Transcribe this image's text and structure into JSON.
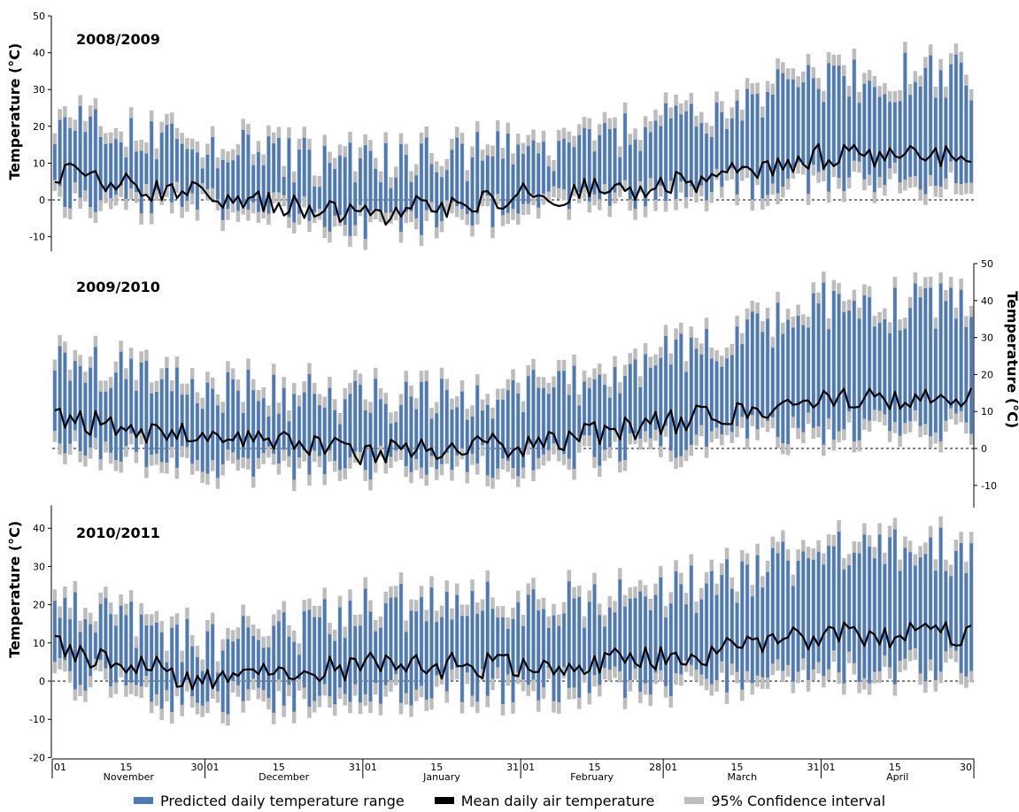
{
  "chart_data": [
    {
      "type": "bar",
      "title": "2008/2009",
      "ylabel": "Temperature (°C)",
      "y_axis_side": "left",
      "ylim": [
        -14,
        50
      ],
      "yticks": [
        -10,
        0,
        10,
        20,
        30,
        40,
        50
      ],
      "reference_line": 0,
      "x": {
        "start": "November 1",
        "end": "April 30"
      },
      "series": [
        {
          "name": "Predicted daily temperature range",
          "kind": "range",
          "note": "approx. monthly mean range",
          "monthly_min": [
            2,
            0,
            -6,
            -2,
            3,
            6
          ],
          "monthly_max": [
            20,
            13,
            9,
            13,
            20,
            33
          ]
        },
        {
          "name": "Mean daily air temperature",
          "kind": "line",
          "monthly_mean": [
            7,
            1,
            -4,
            1,
            4,
            12
          ]
        },
        {
          "name": "95% Confidence interval",
          "kind": "band",
          "approx_width": 3
        }
      ]
    },
    {
      "type": "bar",
      "title": "2009/2010",
      "ylabel": "Temperature (°C)",
      "y_axis_side": "right",
      "ylim": [
        -16,
        50
      ],
      "yticks": [
        -10,
        0,
        10,
        20,
        30,
        40,
        50
      ],
      "reference_line": 0,
      "x": {
        "start": "November 1",
        "end": "April 30"
      },
      "series": [
        {
          "name": "Predicted daily temperature range",
          "kind": "range",
          "monthly_min": [
            2,
            -3,
            -4,
            -3,
            2,
            6
          ],
          "monthly_max": [
            24,
            16,
            12,
            14,
            24,
            38
          ]
        },
        {
          "name": "Mean daily air temperature",
          "kind": "line",
          "monthly_mean": [
            8,
            3,
            -1,
            1,
            7,
            13
          ]
        },
        {
          "name": "95% Confidence interval",
          "kind": "band",
          "approx_width": 3
        }
      ]
    },
    {
      "type": "bar",
      "title": "2010/2011",
      "ylabel": "Temperature (°C)",
      "y_axis_side": "left",
      "ylim": [
        -20,
        46
      ],
      "yticks": [
        -20,
        -10,
        0,
        10,
        20,
        30,
        40
      ],
      "reference_line": 0,
      "x": {
        "start": "November 1",
        "end": "April 30",
        "tick_labels": [
          "01",
          "15",
          "30",
          "01",
          "15",
          "31",
          "01",
          "15",
          "31",
          "01",
          "15",
          "28",
          "01",
          "15",
          "31",
          "01",
          "15",
          "30"
        ],
        "month_labels": [
          "November",
          "December",
          "January",
          "February",
          "March",
          "April"
        ]
      },
      "series": [
        {
          "name": "Predicted daily temperature range",
          "kind": "range",
          "monthly_min": [
            3,
            -5,
            -2,
            -1,
            0,
            4
          ],
          "monthly_max": [
            22,
            8,
            18,
            20,
            22,
            34
          ]
        },
        {
          "name": "Mean daily air temperature",
          "kind": "line",
          "monthly_mean": [
            9,
            0,
            4,
            4,
            6,
            12
          ]
        },
        {
          "name": "95% Confidence interval",
          "kind": "band",
          "approx_width": 3
        }
      ]
    }
  ],
  "legend": {
    "items": [
      {
        "label": "Predicted daily temperature range",
        "color": "#4a7ab8"
      },
      {
        "label": "Mean daily air temperature",
        "color": "#000000"
      },
      {
        "label": "95% Confidence interval",
        "color": "#bdbdbd"
      }
    ]
  },
  "colors": {
    "range_bar": "#4a7ab8",
    "confidence": "#bdbdbd",
    "mean_line": "#000000"
  }
}
